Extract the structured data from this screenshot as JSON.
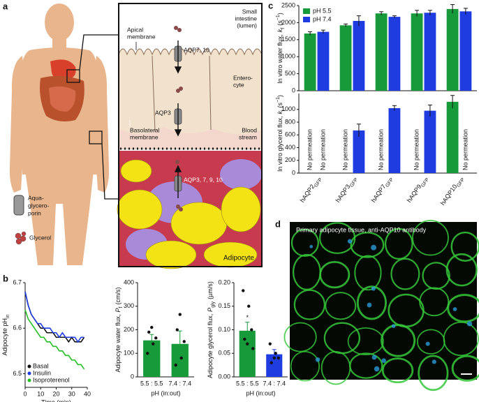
{
  "panel_labels": [
    "a",
    "b",
    "c",
    "d"
  ],
  "diagram": {
    "aquaglyceroporin": [
      "Aqua-",
      "glycero-",
      "porin"
    ],
    "glycerol": "Glycerol",
    "apical": [
      "Apical",
      "membrane"
    ],
    "lumen": [
      "Small",
      "intestine",
      "(lumen)"
    ],
    "aqp7_10": "AQP7, 10",
    "enterocyte": [
      "Entero-",
      "cyte"
    ],
    "aqp3": "AQP3",
    "basolateral": [
      "Basolateral",
      "membrane"
    ],
    "blood": [
      "Blood",
      "stream"
    ],
    "aqp_all": "AQP3, 7, 9, 10",
    "adipocyte": "Adipocyte"
  },
  "micrograph": {
    "caption": "Primary adipocyte tissue, anti-AQP10 antibody"
  },
  "chart_data": [
    {
      "type": "line",
      "ylabel": [
        "Adipocyte pH",
        "in"
      ],
      "ylabel_styles": [
        "plain",
        "sub"
      ],
      "xlabel": "Time (min)",
      "x": [
        0,
        2,
        4,
        6,
        8,
        10,
        12,
        14,
        16,
        18,
        20,
        22,
        24,
        26,
        28,
        30,
        32,
        34,
        36,
        38
      ],
      "xlim": [
        0,
        40
      ],
      "xticks": [
        0,
        10,
        20,
        30,
        40
      ],
      "ylim": [
        6.47,
        6.7
      ],
      "yticks": [
        6.5,
        6.6,
        6.7
      ],
      "legend": "lower left",
      "series": [
        {
          "name": "Basal",
          "color": "#111111",
          "values": [
            6.68,
            6.65,
            6.63,
            6.62,
            6.61,
            6.6,
            6.6,
            6.59,
            6.59,
            6.59,
            6.58,
            6.58,
            6.58,
            6.58,
            6.57,
            6.58,
            6.57,
            6.57,
            6.57,
            6.58
          ]
        },
        {
          "name": "Insulin",
          "color": "#1f3ce0",
          "values": [
            6.68,
            6.65,
            6.63,
            6.62,
            6.61,
            6.61,
            6.6,
            6.6,
            6.6,
            6.59,
            6.59,
            6.58,
            6.59,
            6.58,
            6.58,
            6.58,
            6.58,
            6.57,
            6.58,
            6.58
          ]
        },
        {
          "name": "Isoproterenol",
          "color": "#22c022",
          "values": [
            6.64,
            6.62,
            6.61,
            6.6,
            6.59,
            6.58,
            6.58,
            6.57,
            6.57,
            6.56,
            6.56,
            6.55,
            6.55,
            6.54,
            6.54,
            6.53,
            6.53,
            6.52,
            6.52,
            6.51
          ]
        }
      ]
    },
    {
      "type": "bar",
      "ylabel": [
        "Adipocyte water flux,",
        "P",
        "f",
        "(cm/s)"
      ],
      "ylabel_styles": [
        "plain",
        "italic",
        "sub",
        "plain"
      ],
      "xlabel": "pH (in:out)",
      "categories": [
        "5.5 : 5.5",
        "7.4 : 7.4"
      ],
      "values": [
        155,
        140
      ],
      "errors": [
        25,
        55
      ],
      "colors": [
        "#169a3a",
        "#169a3a"
      ],
      "points": [
        [
          100,
          140,
          165,
          190,
          210
        ],
        [
          50,
          80,
          150,
          200,
          265
        ]
      ],
      "ylim": [
        0,
        400
      ],
      "yticks": [
        0,
        100,
        200,
        300,
        400
      ]
    },
    {
      "type": "bar",
      "ylabel": [
        "Adipocyte glycerol flux,",
        "P",
        "gly",
        "(µm/s)"
      ],
      "ylabel_styles": [
        "plain",
        "italic",
        "sub",
        "plain"
      ],
      "xlabel": "pH (in:out)",
      "categories": [
        "5.5 : 5.5",
        "7.4 : 7.4"
      ],
      "values": [
        0.098,
        0.048
      ],
      "errors": [
        0.018,
        0.01
      ],
      "colors": [
        "#169a3a",
        "#1f3ce0"
      ],
      "points": [
        [
          0.183,
          0.15,
          0.1,
          0.08,
          0.07,
          0.06
        ],
        [
          0.07,
          0.05,
          0.04,
          0.03,
          0.04
        ]
      ],
      "annotation": "*",
      "ylim": [
        0,
        0.2
      ],
      "yticks": [
        {
          "value": 0,
          "label": "0.00"
        },
        0.05,
        {
          "value": 0.1,
          "label": "0.10"
        },
        0.15,
        {
          "value": 0.2,
          "label": "0.20"
        }
      ]
    },
    {
      "type": "grouped_bar",
      "ylabel": [
        "In vitro water flux,",
        "k",
        "f",
        "(s",
        "−1",
        ")"
      ],
      "ylabel_styles": [
        "plain",
        "italic",
        "sub",
        "plain",
        "sup",
        "plain"
      ],
      "ylim": [
        0,
        2500
      ],
      "yticks": [
        0,
        500,
        1000,
        1500,
        2000,
        2500
      ],
      "legend": "upper left",
      "series": [
        {
          "name": "pH 5.5",
          "color": "#169a3a",
          "values": [
            1680,
            1920,
            2270,
            2270,
            2400
          ],
          "errors": [
            50,
            40,
            50,
            90,
            130
          ]
        },
        {
          "name": "pH 7.4",
          "color": "#1f3ce0",
          "values": [
            1730,
            2050,
            2170,
            2290,
            2330
          ],
          "errors": [
            50,
            150,
            30,
            70,
            90
          ]
        }
      ]
    },
    {
      "type": "grouped_bar",
      "ylabel": [
        "In vitro glycerol flux,",
        "k",
        "j",
        "(s",
        "−1",
        ")"
      ],
      "ylabel_styles": [
        "plain",
        "italic",
        "sub",
        "plain",
        "sup",
        "plain"
      ],
      "categories": [
        "hAQP2",
        "hAQP3",
        "hAQP7",
        "hAQP9",
        "hAQP10"
      ],
      "category_subscript": "GFP",
      "annotation": "No permeation",
      "ylim": [
        0,
        1250
      ],
      "yticks": [
        0,
        200,
        400,
        600,
        800,
        1000
      ],
      "series": [
        {
          "color": "#169a3a",
          "values": [
            null,
            null,
            null,
            null,
            1120
          ],
          "errors": [
            null,
            null,
            null,
            null,
            100
          ]
        },
        {
          "color": "#1f3ce0",
          "values": [
            null,
            670,
            1020,
            980,
            null
          ],
          "errors": [
            null,
            100,
            40,
            90,
            null
          ]
        }
      ]
    }
  ]
}
